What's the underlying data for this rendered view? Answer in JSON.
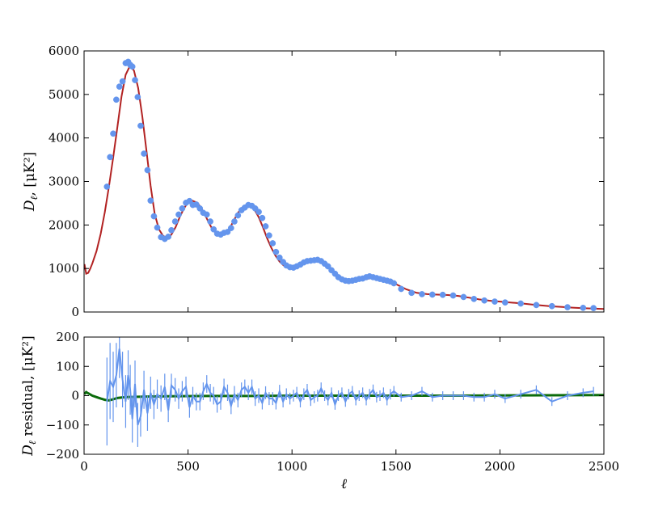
{
  "colors": {
    "model": "#b22222",
    "data": "#6495ed",
    "residual_fit": "#0b6b0b",
    "frame": "#000000"
  },
  "chart_data": [
    {
      "type": "scatter",
      "title": "",
      "xlabel": "",
      "ylabel_main": "D",
      "ylabel_sub": "ℓ",
      "ylabel_rest": ", [μK²]",
      "xlim": [
        0,
        2500
      ],
      "ylim": [
        0,
        6000
      ],
      "yticks": [
        0,
        1000,
        2000,
        3000,
        4000,
        5000,
        6000
      ],
      "xticks": [
        0,
        500,
        1000,
        1500,
        2000,
        2500
      ],
      "grid": false,
      "series": [
        {
          "kind": "line",
          "x": [
            2,
            10,
            20,
            30,
            40,
            60,
            80,
            100,
            120,
            140,
            160,
            180,
            200,
            220,
            240,
            260,
            280,
            300,
            320,
            340,
            360,
            380,
            400,
            420,
            440,
            460,
            480,
            500,
            520,
            540,
            560,
            580,
            600,
            620,
            640,
            660,
            680,
            700,
            720,
            740,
            760,
            780,
            800,
            820,
            840,
            860,
            880,
            900,
            920,
            940,
            960,
            980,
            1000,
            1020,
            1040,
            1060,
            1080,
            1100,
            1120,
            1140,
            1160,
            1180,
            1200,
            1220,
            1240,
            1260,
            1280,
            1300,
            1320,
            1340,
            1360,
            1380,
            1400,
            1420,
            1440,
            1460,
            1480,
            1500,
            1550,
            1600,
            1650,
            1700,
            1750,
            1800,
            1850,
            1900,
            1950,
            2000,
            2050,
            2100,
            2150,
            2200,
            2250,
            2300,
            2350,
            2400,
            2450,
            2500
          ],
          "y": [
            1100,
            880,
            900,
            1000,
            1120,
            1400,
            1800,
            2300,
            2900,
            3550,
            4250,
            4950,
            5450,
            5650,
            5550,
            5150,
            4500,
            3700,
            2900,
            2250,
            1900,
            1750,
            1700,
            1780,
            1950,
            2180,
            2380,
            2520,
            2560,
            2520,
            2420,
            2250,
            2050,
            1880,
            1800,
            1790,
            1820,
            1920,
            2100,
            2280,
            2400,
            2460,
            2440,
            2350,
            2180,
            1950,
            1700,
            1480,
            1300,
            1160,
            1070,
            1020,
            1020,
            1060,
            1110,
            1160,
            1190,
            1200,
            1190,
            1160,
            1100,
            1020,
            930,
            850,
            790,
            750,
            720,
            710,
            720,
            740,
            760,
            780,
            790,
            790,
            770,
            740,
            700,
            640,
            520,
            440,
            410,
            400,
            390,
            370,
            330,
            290,
            260,
            240,
            220,
            200,
            175,
            150,
            130,
            115,
            100,
            90,
            80,
            70
          ]
        },
        {
          "kind": "points",
          "x": [
            110,
            125,
            140,
            155,
            170,
            185,
            200,
            212,
            222,
            232,
            245,
            258,
            272,
            288,
            305,
            320,
            336,
            352,
            370,
            388,
            405,
            420,
            438,
            455,
            472,
            490,
            507,
            523,
            540,
            557,
            573,
            590,
            607,
            623,
            640,
            657,
            673,
            690,
            707,
            723,
            740,
            757,
            773,
            790,
            807,
            823,
            840,
            857,
            873,
            890,
            907,
            923,
            940,
            957,
            973,
            990,
            1007,
            1023,
            1040,
            1057,
            1073,
            1090,
            1107,
            1123,
            1140,
            1157,
            1173,
            1190,
            1207,
            1223,
            1240,
            1257,
            1273,
            1290,
            1307,
            1323,
            1340,
            1357,
            1373,
            1390,
            1407,
            1423,
            1440,
            1457,
            1473,
            1490,
            1525,
            1575,
            1625,
            1675,
            1725,
            1775,
            1825,
            1875,
            1925,
            1975,
            2025,
            2100,
            2175,
            2250,
            2325,
            2400,
            2450
          ],
          "y": [
            2880,
            3560,
            4100,
            4880,
            5180,
            5300,
            5720,
            5750,
            5680,
            5640,
            5330,
            4940,
            4280,
            3640,
            3260,
            2560,
            2200,
            1940,
            1720,
            1680,
            1730,
            1880,
            2080,
            2240,
            2380,
            2510,
            2550,
            2460,
            2470,
            2380,
            2280,
            2240,
            2080,
            1900,
            1800,
            1780,
            1820,
            1840,
            1930,
            2080,
            2220,
            2340,
            2400,
            2460,
            2440,
            2380,
            2300,
            2160,
            1970,
            1760,
            1580,
            1380,
            1250,
            1150,
            1070,
            1030,
            1020,
            1050,
            1090,
            1140,
            1170,
            1180,
            1190,
            1200,
            1170,
            1110,
            1050,
            960,
            880,
            800,
            750,
            720,
            710,
            720,
            740,
            760,
            770,
            800,
            820,
            800,
            780,
            760,
            740,
            720,
            700,
            660,
            530,
            440,
            410,
            400,
            395,
            380,
            345,
            300,
            265,
            240,
            220,
            195,
            160,
            135,
            110,
            95,
            90
          ]
        }
      ]
    },
    {
      "type": "line",
      "title": "",
      "xlabel": "ℓ",
      "ylabel_main": "D",
      "ylabel_sub": "ℓ",
      "ylabel_rest": " residual, [μK²]",
      "xlim": [
        0,
        2500
      ],
      "ylim": [
        -200,
        200
      ],
      "yticks": [
        -200,
        -100,
        0,
        100,
        200
      ],
      "xticks": [
        0,
        500,
        1000,
        1500,
        2000,
        2500
      ],
      "xtick_labels": [
        "0",
        "500",
        "1000",
        "1500",
        "2000",
        "2500"
      ],
      "ytick_labels": [
        "−200",
        "−100",
        "0",
        "100",
        "200"
      ],
      "grid": false,
      "series": [
        {
          "kind": "fit",
          "x": [
            2,
            10,
            20,
            40,
            60,
            80,
            100,
            120,
            140,
            160,
            200,
            300,
            400,
            600,
            800,
            1000,
            1200,
            1500,
            1800,
            2100,
            2500
          ],
          "y": [
            5,
            12,
            8,
            0,
            -5,
            -10,
            -14,
            -16,
            -12,
            -8,
            -5,
            -3,
            -2,
            -1,
            -1,
            0,
            0,
            0,
            0,
            1,
            2
          ]
        },
        {
          "kind": "data",
          "x": [
            110,
            125,
            140,
            155,
            170,
            185,
            200,
            212,
            222,
            232,
            245,
            258,
            272,
            288,
            305,
            320,
            336,
            352,
            370,
            388,
            405,
            420,
            438,
            455,
            472,
            490,
            507,
            523,
            540,
            557,
            573,
            590,
            607,
            623,
            640,
            657,
            673,
            690,
            707,
            723,
            740,
            757,
            773,
            790,
            807,
            823,
            840,
            857,
            873,
            890,
            907,
            923,
            940,
            957,
            973,
            990,
            1007,
            1023,
            1040,
            1057,
            1073,
            1090,
            1107,
            1123,
            1140,
            1157,
            1173,
            1190,
            1207,
            1223,
            1240,
            1257,
            1273,
            1290,
            1307,
            1323,
            1340,
            1357,
            1373,
            1390,
            1407,
            1423,
            1440,
            1457,
            1473,
            1490,
            1525,
            1575,
            1625,
            1675,
            1725,
            1775,
            1825,
            1875,
            1925,
            1975,
            2025,
            2100,
            2175,
            2250,
            2325,
            2400,
            2450
          ],
          "y": [
            -20,
            50,
            30,
            70,
            160,
            55,
            -20,
            70,
            20,
            -80,
            40,
            -100,
            -70,
            20,
            -60,
            10,
            -30,
            5,
            -10,
            30,
            -50,
            35,
            20,
            -10,
            15,
            30,
            -40,
            0,
            -20,
            -20,
            15,
            40,
            10,
            0,
            -30,
            -20,
            30,
            10,
            -35,
            5,
            -15,
            20,
            30,
            10,
            30,
            -10,
            0,
            -25,
            10,
            -10,
            -10,
            -25,
            15,
            -20,
            5,
            -10,
            0,
            10,
            -20,
            5,
            20,
            -15,
            -5,
            0,
            25,
            0,
            -15,
            10,
            -30,
            0,
            10,
            -20,
            5,
            15,
            -15,
            0,
            10,
            -15,
            5,
            20,
            -5,
            0,
            10,
            -15,
            5,
            15,
            -5,
            0,
            15,
            -5,
            0,
            0,
            0,
            -5,
            -5,
            5,
            -10,
            5,
            20,
            -20,
            0,
            10,
            15
          ],
          "err": [
            150,
            130,
            120,
            110,
            100,
            95,
            90,
            85,
            85,
            80,
            80,
            75,
            70,
            65,
            60,
            55,
            50,
            50,
            45,
            45,
            40,
            40,
            40,
            35,
            35,
            35,
            35,
            30,
            30,
            30,
            30,
            30,
            30,
            30,
            28,
            28,
            28,
            28,
            28,
            28,
            25,
            25,
            25,
            25,
            25,
            25,
            25,
            22,
            22,
            22,
            22,
            22,
            22,
            20,
            20,
            20,
            20,
            20,
            20,
            20,
            20,
            20,
            20,
            20,
            20,
            18,
            18,
            18,
            18,
            18,
            18,
            18,
            18,
            18,
            18,
            18,
            18,
            18,
            18,
            18,
            18,
            18,
            18,
            18,
            18,
            18,
            15,
            15,
            15,
            15,
            15,
            15,
            15,
            15,
            15,
            15,
            15,
            15,
            15,
            15,
            15,
            15,
            15
          ]
        }
      ]
    }
  ]
}
